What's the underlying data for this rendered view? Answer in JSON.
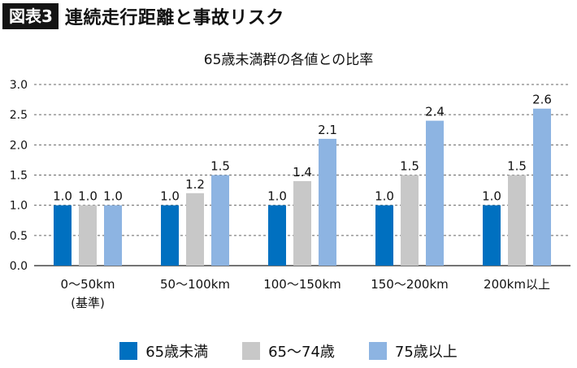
{
  "header": {
    "badge": "図表3",
    "title": "連続走行距離と事故リスク"
  },
  "chart_data": {
    "type": "bar",
    "title": "65歳未満群の各値との比率",
    "categories": [
      "0～50km",
      "50～100km",
      "100～150km",
      "150～200km",
      "200km以上"
    ],
    "category_sublabels": [
      "(基準)",
      "",
      "",
      "",
      ""
    ],
    "series": [
      {
        "name": "65歳未満",
        "color": "#0070c0",
        "values": [
          1.0,
          1.0,
          1.0,
          1.0,
          1.0
        ]
      },
      {
        "name": "65～74歳",
        "color": "#c8c8c8",
        "values": [
          1.0,
          1.2,
          1.4,
          1.5,
          1.5
        ]
      },
      {
        "name": "75歳以上",
        "color": "#8db4e2",
        "values": [
          1.0,
          1.5,
          2.1,
          2.4,
          2.6
        ]
      }
    ],
    "value_labels": [
      [
        "1.0",
        "1.0",
        "1.0",
        "1.0",
        "1.0"
      ],
      [
        "1.0",
        "1.2",
        "1.4",
        "1.5",
        "1.5"
      ],
      [
        "1.0",
        "1.5",
        "2.1",
        "2.4",
        "2.6"
      ]
    ],
    "y_ticks": [
      "0.0",
      "0.5",
      "1.0",
      "1.5",
      "2.0",
      "2.5",
      "3.0"
    ],
    "ylim": [
      0,
      3.0
    ],
    "grid": "dashed horizontal",
    "legend_position": "bottom"
  }
}
